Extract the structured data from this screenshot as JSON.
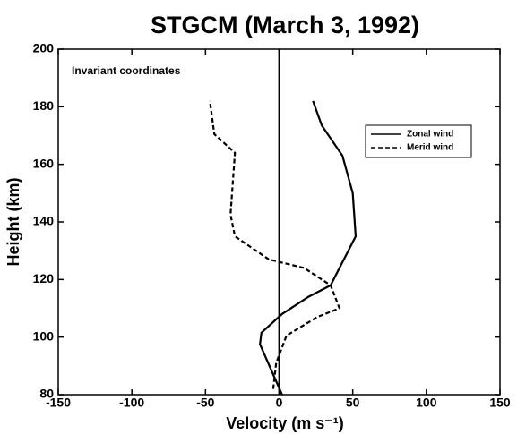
{
  "chart_data": {
    "type": "line",
    "title": "STGCM (March 3, 1992)",
    "xlabel": "Velocity (m s⁻¹)",
    "ylabel": "Height (km)",
    "annotation": "Invariant coordinates",
    "xlim": [
      -150,
      150
    ],
    "xticks": [
      -150,
      -100,
      -50,
      0,
      50,
      100,
      150
    ],
    "ylim": [
      80,
      200
    ],
    "yticks": [
      80,
      100,
      120,
      140,
      160,
      180,
      200
    ],
    "grid": false,
    "legend": "upper right",
    "series": [
      {
        "name": "Zonal wind",
        "color": "#000000",
        "dash": "solid",
        "x": [
          2,
          -13,
          -12,
          2,
          20,
          35,
          42,
          48,
          52,
          50,
          43,
          29,
          23
        ],
        "y": [
          80,
          97.5,
          101.5,
          108,
          114,
          118,
          125,
          131,
          135,
          150,
          163,
          173.5,
          182
        ]
      },
      {
        "name": "Merid wind",
        "color": "#000000",
        "dash": "dashed",
        "x": [
          -4,
          -2,
          5,
          26,
          41,
          35,
          17,
          -7,
          -30,
          -33,
          -30,
          -44,
          -47
        ],
        "y": [
          82,
          91,
          100.5,
          107,
          110,
          118,
          124,
          127,
          135,
          142.5,
          164,
          170.5,
          182
        ]
      }
    ]
  }
}
